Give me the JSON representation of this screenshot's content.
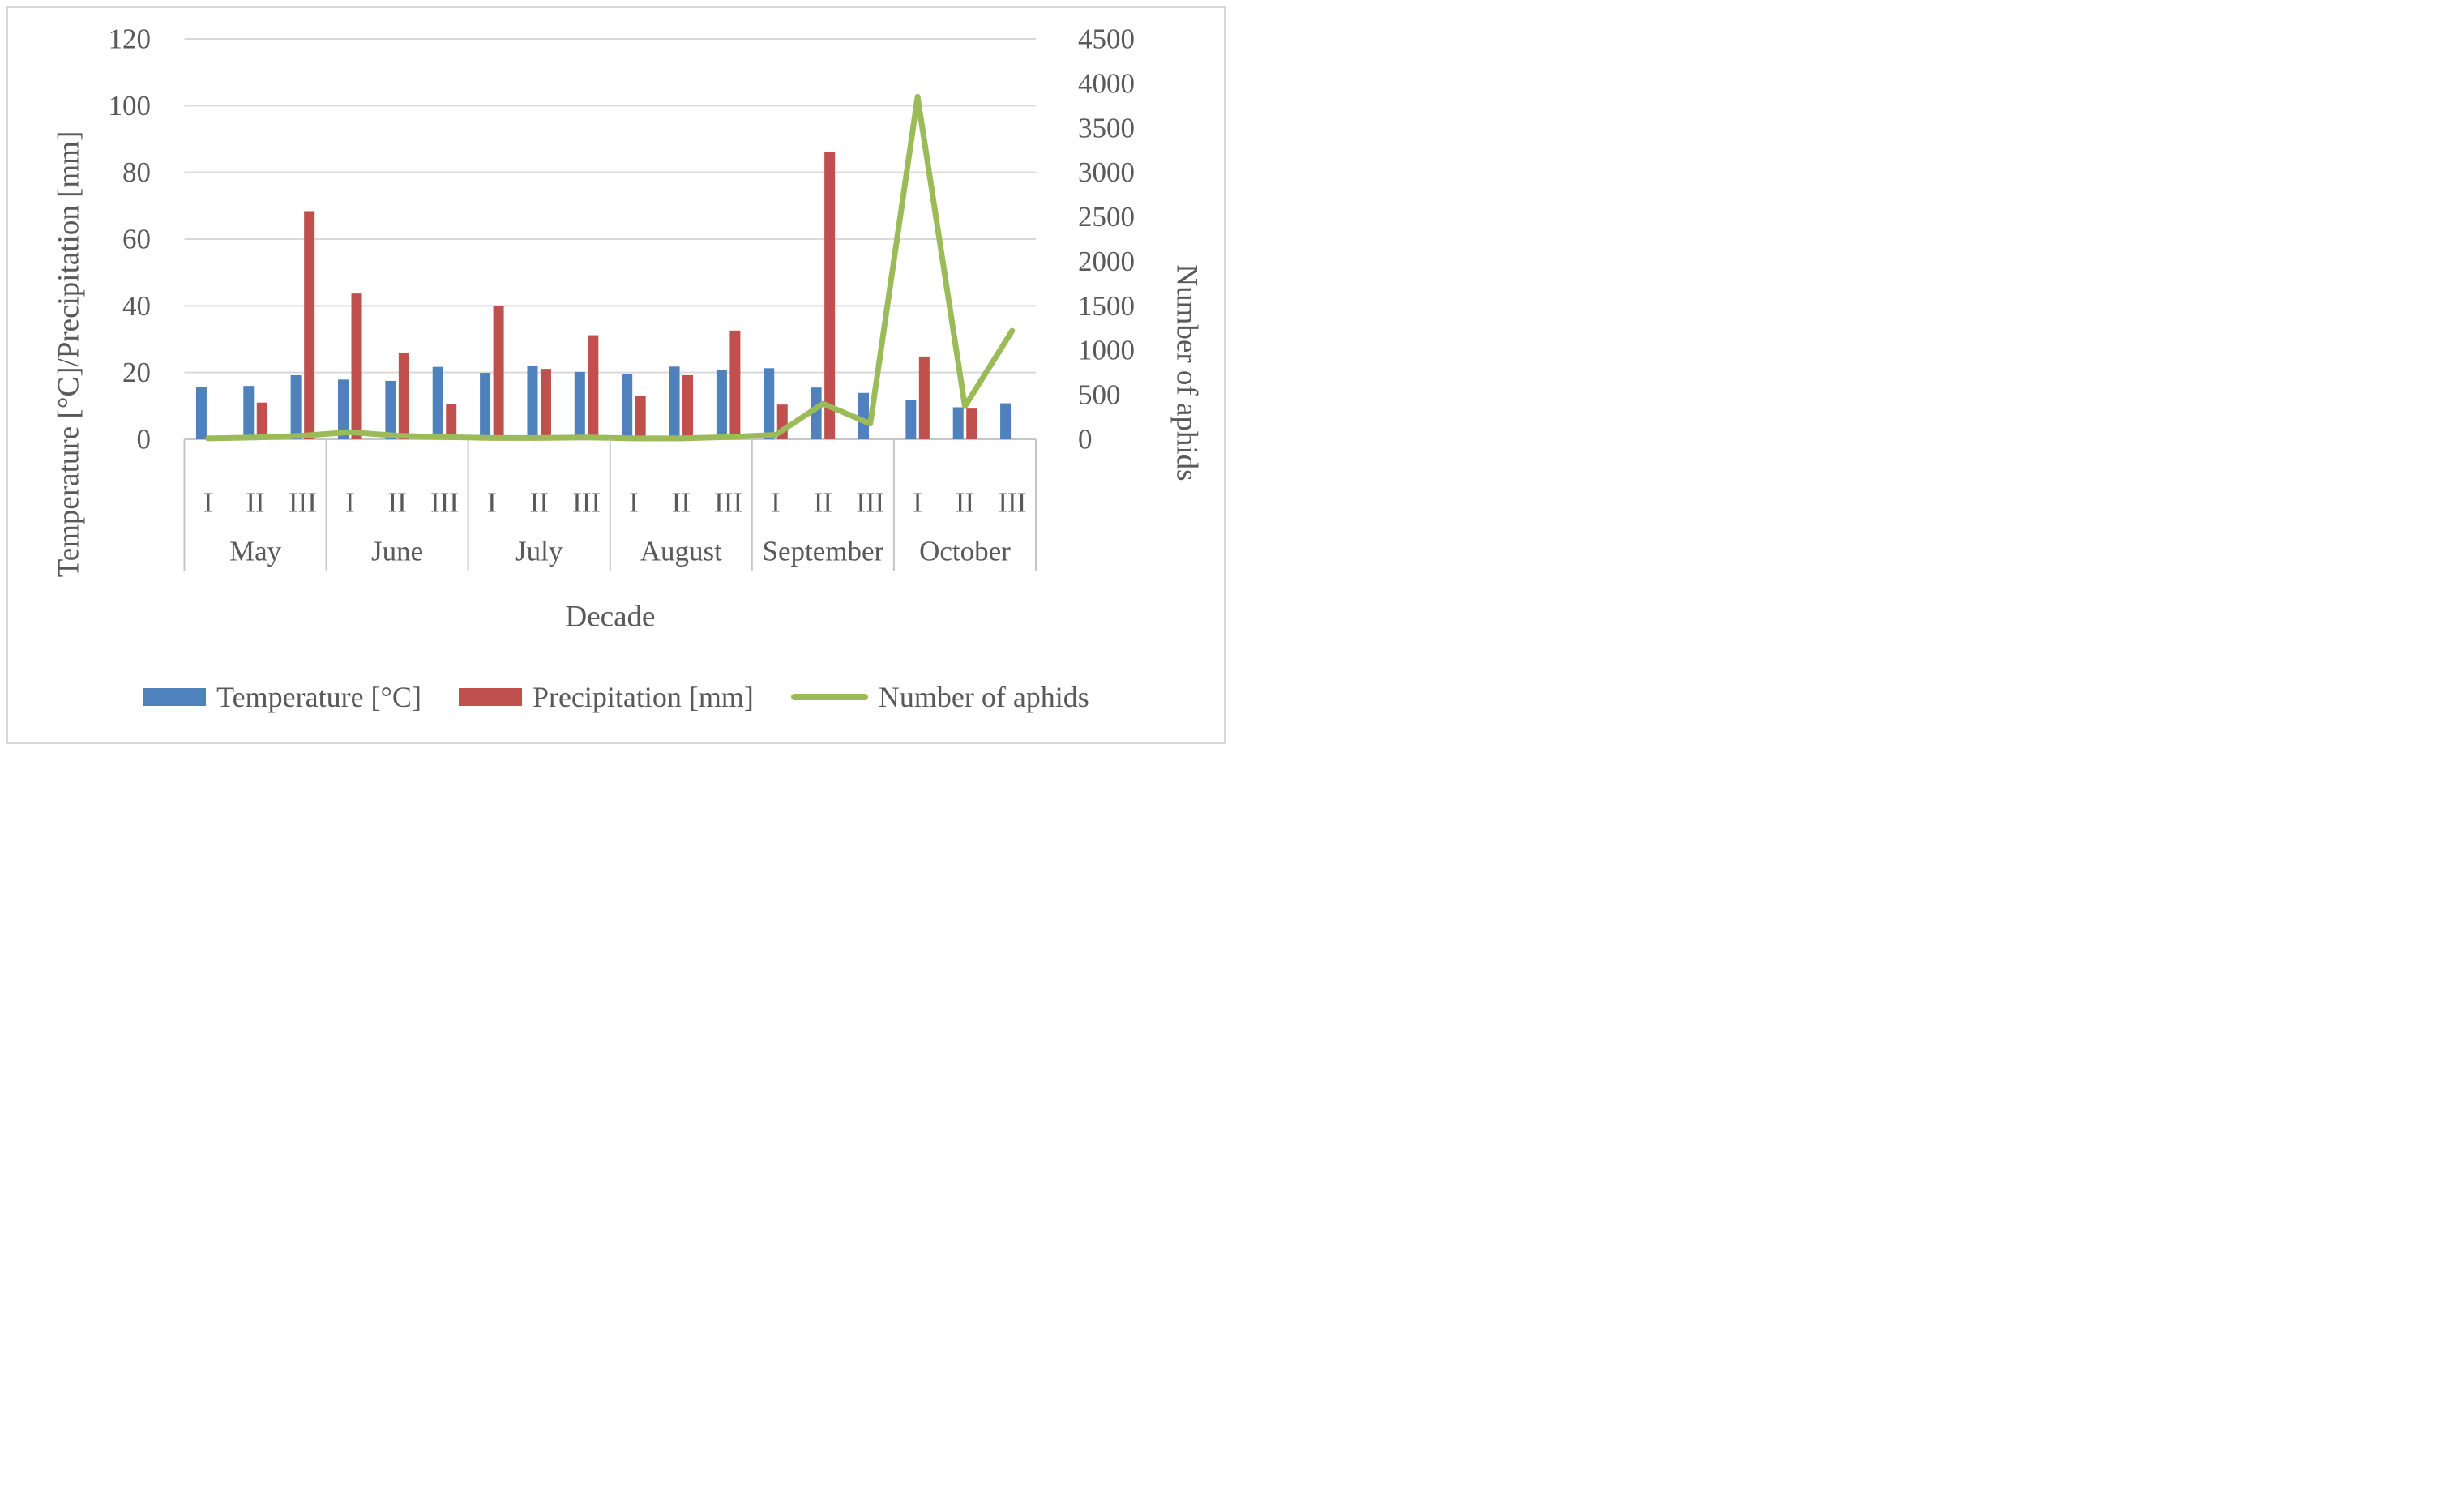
{
  "chart_data": {
    "type": "combo-bar-line",
    "x_axis": {
      "title": "Decade",
      "months": [
        "May",
        "June",
        "July",
        "August",
        "September",
        "October"
      ],
      "decades": [
        "I",
        "II",
        "III"
      ]
    },
    "left_axis": {
      "title": "Temperature [°C]/Precipitation [mm]",
      "min": 0,
      "max": 120,
      "step": 20,
      "tick_labels": [
        "0",
        "20",
        "40",
        "60",
        "80",
        "100",
        "120"
      ]
    },
    "right_axis": {
      "title": "Number of aphids",
      "min": 0,
      "max": 4500,
      "step": 500,
      "tick_labels": [
        "0",
        "500",
        "1000",
        "1500",
        "2000",
        "2500",
        "3000",
        "3500",
        "4000",
        "4500"
      ]
    },
    "series": [
      {
        "name": "Temperature [°C]",
        "type": "bar",
        "axis": "left",
        "color": "#4F81BD",
        "values": [
          15.7,
          16.0,
          19.2,
          17.9,
          17.5,
          21.7,
          19.9,
          22.0,
          20.2,
          19.6,
          21.8,
          20.7,
          21.3,
          15.5,
          13.9,
          11.8,
          9.6,
          10.8
        ]
      },
      {
        "name": "Precipitation [mm]",
        "type": "bar",
        "axis": "left",
        "color": "#C0504D",
        "values": [
          0,
          11.0,
          68.4,
          43.7,
          26.0,
          10.6,
          40.0,
          21.1,
          31.2,
          13.1,
          19.2,
          32.6,
          10.4,
          86.0,
          0,
          24.8,
          9.2,
          0
        ]
      },
      {
        "name": "Number of aphids",
        "type": "line",
        "axis": "right",
        "color": "#9BBB59",
        "values": [
          10,
          20,
          40,
          80,
          40,
          25,
          15,
          15,
          20,
          10,
          10,
          25,
          50,
          400,
          175,
          3850,
          370,
          1220
        ]
      }
    ],
    "grid": {
      "color": "#D9D9D9",
      "axis_color": "#C6C6C6"
    },
    "legend_position": "bottom"
  },
  "legend": {
    "temperature_label": "Temperature [°C]",
    "precipitation_label": "Precipitation [mm]",
    "aphids_label": "Number of aphids"
  },
  "titles": {
    "left_axis": "Temperature [°C]/Precipitation [mm]",
    "right_axis": "Number of aphids",
    "x_axis": "Decade"
  },
  "text_color": "#595959"
}
